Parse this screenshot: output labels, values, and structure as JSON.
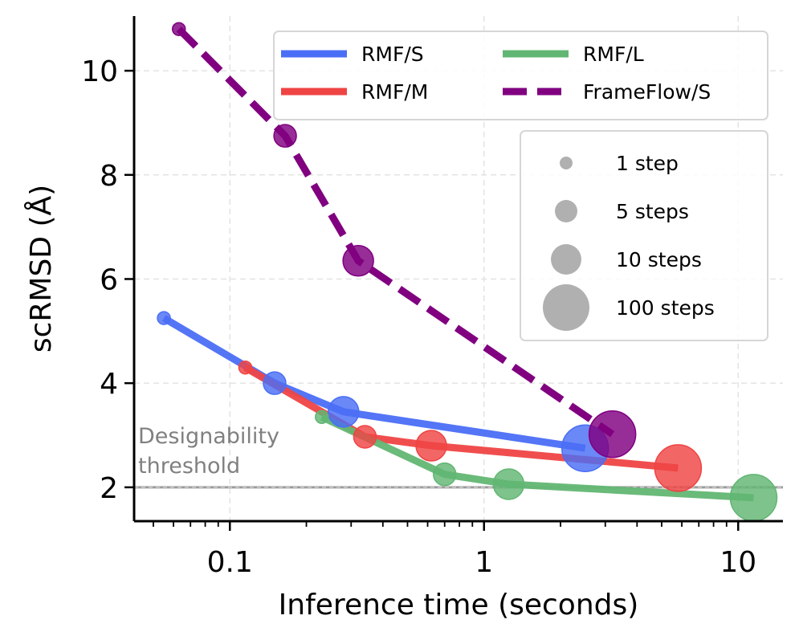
{
  "chart_data": {
    "type": "scatter",
    "xlabel": "Inference time (seconds)",
    "ylabel": "scRMSD (Å)",
    "xscale": "log",
    "xlim": [
      0.042,
      15
    ],
    "ylim": [
      1.35,
      11.05
    ],
    "xticks": [
      {
        "value": 0.1,
        "label": "0.1"
      },
      {
        "value": 1,
        "label": "1"
      },
      {
        "value": 10,
        "label": "10"
      }
    ],
    "yticks": [
      {
        "value": 2,
        "label": "2"
      },
      {
        "value": 4,
        "label": "4"
      },
      {
        "value": 6,
        "label": "6"
      },
      {
        "value": 8,
        "label": "8"
      },
      {
        "value": 10,
        "label": "10"
      }
    ],
    "grid": true,
    "series": [
      {
        "name": "RMF/S",
        "color": "#4a6ef5",
        "line_style": "solid",
        "points": [
          {
            "x": 0.055,
            "y": 5.25,
            "steps": 1
          },
          {
            "x": 0.15,
            "y": 4.0,
            "steps": 5
          },
          {
            "x": 0.28,
            "y": 3.45,
            "steps": 10
          },
          {
            "x": 2.5,
            "y": 2.75,
            "steps": 100
          }
        ]
      },
      {
        "name": "RMF/M",
        "color": "#ef4444",
        "line_style": "solid",
        "points": [
          {
            "x": 0.115,
            "y": 4.3,
            "steps": 1
          },
          {
            "x": 0.34,
            "y": 2.97,
            "steps": 5
          },
          {
            "x": 0.62,
            "y": 2.8,
            "steps": 10
          },
          {
            "x": 5.8,
            "y": 2.37,
            "steps": 100
          }
        ]
      },
      {
        "name": "RMF/L",
        "color": "#62b673",
        "line_style": "solid",
        "points": [
          {
            "x": 0.23,
            "y": 3.35,
            "steps": 1
          },
          {
            "x": 0.7,
            "y": 2.25,
            "steps": 5
          },
          {
            "x": 1.25,
            "y": 2.06,
            "steps": 10
          },
          {
            "x": 11.5,
            "y": 1.8,
            "steps": 100
          }
        ]
      },
      {
        "name": "FrameFlow/S",
        "color": "#800080",
        "line_style": "dashed",
        "points": [
          {
            "x": 0.063,
            "y": 10.8,
            "steps": 1
          },
          {
            "x": 0.165,
            "y": 8.75,
            "steps": 5
          },
          {
            "x": 0.32,
            "y": 6.35,
            "steps": 10
          },
          {
            "x": 3.2,
            "y": 3.02,
            "steps": 100
          }
        ]
      }
    ],
    "size_legend": [
      {
        "steps": 1,
        "label": "1 step"
      },
      {
        "steps": 5,
        "label": "5 steps"
      },
      {
        "steps": 10,
        "label": "10 steps"
      },
      {
        "steps": 100,
        "label": "100 steps"
      }
    ],
    "legend_position": "top-right",
    "threshold": {
      "y": 2,
      "label_lines": [
        "Designability",
        "threshold"
      ],
      "color": "#808080"
    }
  }
}
